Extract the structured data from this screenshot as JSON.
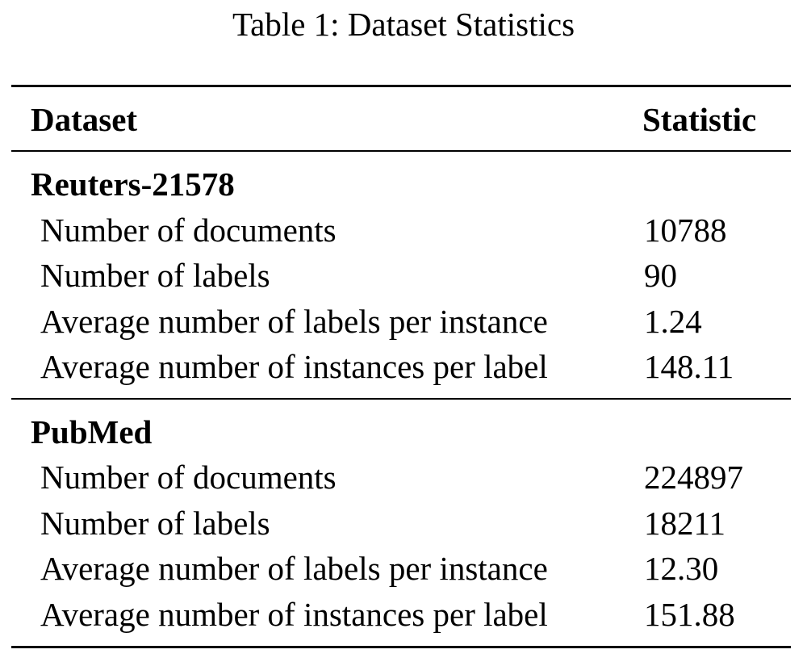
{
  "table": {
    "caption": "Table 1: Dataset Statistics",
    "headers": [
      "Dataset",
      "Statistic"
    ],
    "groups": [
      {
        "name": "Reuters-21578",
        "rows": [
          {
            "label": "Number of documents",
            "value": "10788"
          },
          {
            "label": "Number of labels",
            "value": "90"
          },
          {
            "label": "Average number of labels per instance",
            "value": "1.24"
          },
          {
            "label": "Average number of instances per label",
            "value": "148.11"
          }
        ]
      },
      {
        "name": "PubMed",
        "rows": [
          {
            "label": "Number of documents",
            "value": "224897"
          },
          {
            "label": "Number of labels",
            "value": "18211"
          },
          {
            "label": "Average number of labels per instance",
            "value": "12.30"
          },
          {
            "label": "Average number of instances per label",
            "value": "151.88"
          }
        ]
      }
    ]
  }
}
